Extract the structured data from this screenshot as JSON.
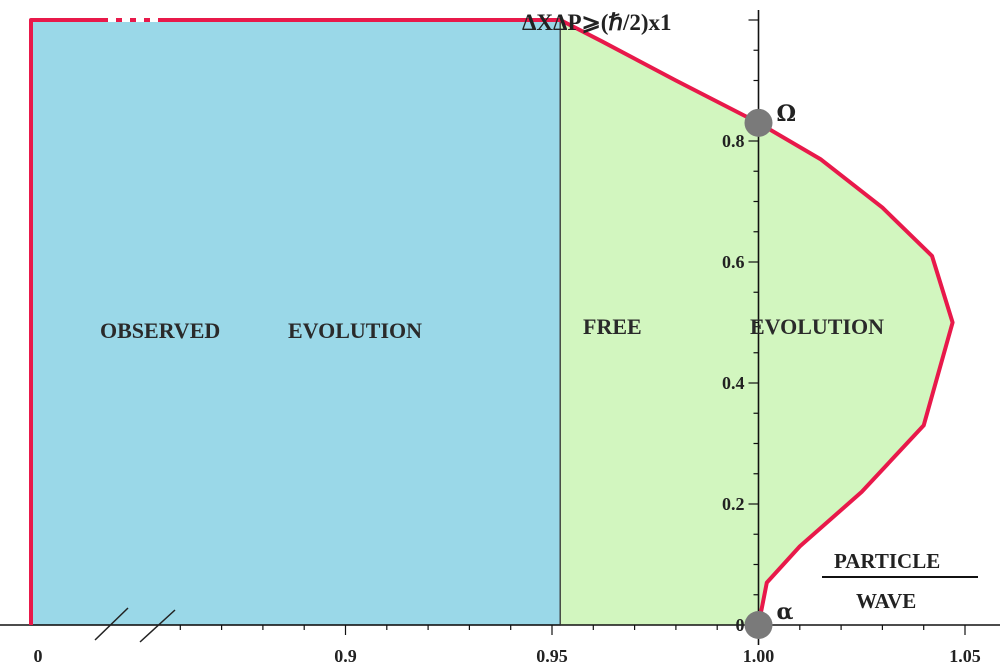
{
  "chart_data": {
    "type": "area",
    "x_tick_labels": [
      "0",
      "0.9",
      "0.95",
      "1.00",
      "1.05"
    ],
    "y_tick_labels": [
      "0",
      "0.2",
      "0.4",
      "0.6",
      "0.8"
    ],
    "y_axis_title": "ΔXΔP⩾(ℏ/2)x1",
    "regions": [
      {
        "label_parts": [
          "OBSERVED",
          "EVOLUTION"
        ],
        "fill": "#9ad8e8"
      },
      {
        "label_parts": [
          "FREE",
          "EVOLUTION"
        ],
        "fill": "#d2f6bf"
      }
    ],
    "boundary_curve": {
      "color": "#e8194a",
      "points": [
        [
          1.0,
          0.0
        ],
        [
          1.002,
          0.07
        ],
        [
          1.01,
          0.13
        ],
        [
          1.025,
          0.22
        ],
        [
          1.04,
          0.33
        ],
        [
          1.047,
          0.5
        ],
        [
          1.042,
          0.61
        ],
        [
          1.03,
          0.69
        ],
        [
          1.015,
          0.77
        ],
        [
          1.0,
          0.83
        ],
        [
          0.98,
          0.9
        ],
        [
          0.962,
          0.965
        ],
        [
          0.952,
          1.0
        ]
      ]
    },
    "marked_points": [
      {
        "label": "Ω",
        "x": 1.0,
        "y": 0.83
      },
      {
        "label": "α",
        "x": 1.0,
        "y": 0.0
      }
    ],
    "fraction_label": {
      "numerator": "PARTICLE",
      "denominator": "WAVE"
    },
    "colors": {
      "observed_fill": "#9ad8e8",
      "free_fill": "#d2f6bf",
      "curve": "#e8194a",
      "point": "#7a7a7a"
    }
  }
}
